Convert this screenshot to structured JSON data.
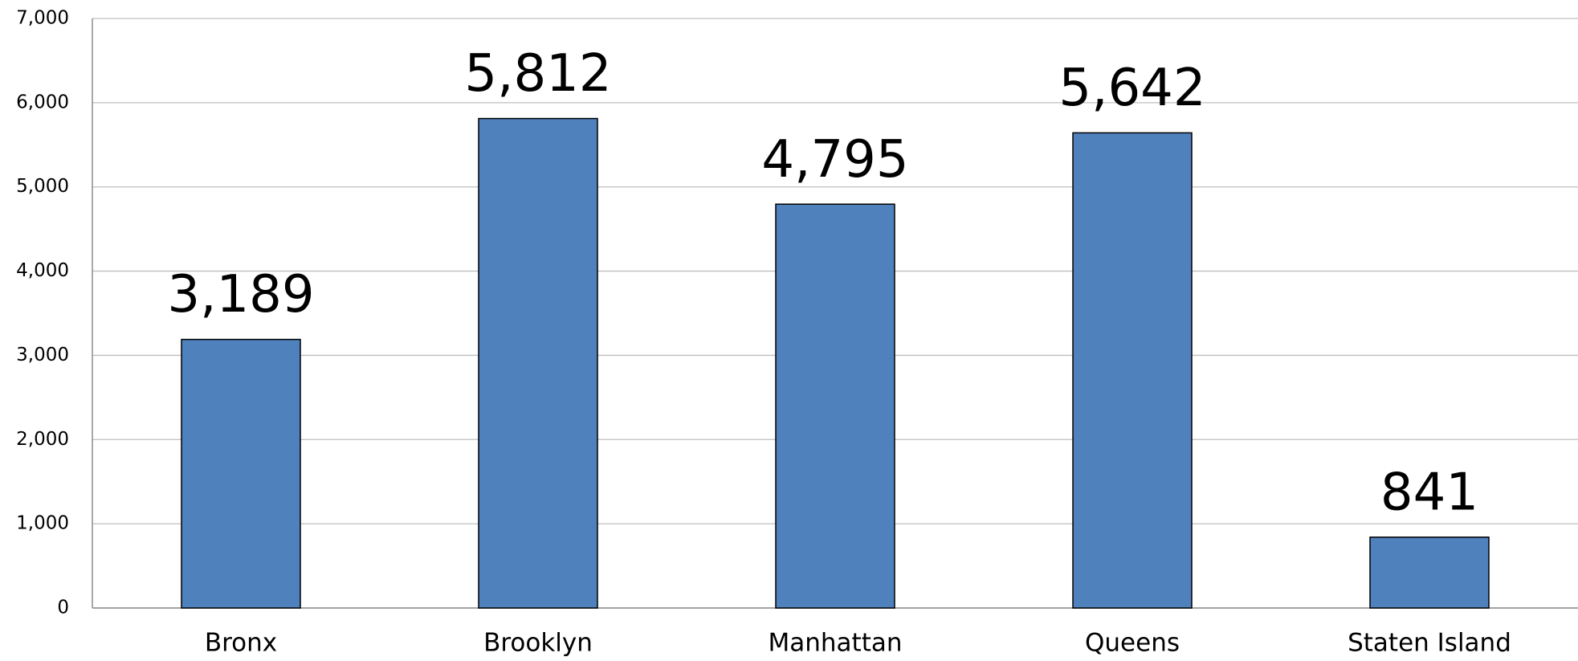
{
  "chart_data": {
    "type": "bar",
    "categories": [
      "Bronx",
      "Brooklyn",
      "Manhattan",
      "Queens",
      "Staten Island"
    ],
    "values": [
      3189,
      5812,
      4795,
      5642,
      841
    ],
    "value_labels": [
      "3,189",
      "5,812",
      "4,795",
      "5,642",
      "841"
    ],
    "color": "#4f81bd",
    "ylim": [
      0,
      7000
    ],
    "yticks": [
      0,
      {
        "value": 1000,
        "label": "1,000"
      },
      {
        "value": 2000,
        "label": "2,000"
      },
      {
        "value": 3000,
        "label": "3,000"
      },
      {
        "value": 4000,
        "label": "4,000"
      },
      {
        "value": 5000,
        "label": "5,000"
      },
      {
        "value": 6000,
        "label": "6,000"
      },
      {
        "value": 7000,
        "label": "7,000"
      }
    ],
    "grid": true
  }
}
